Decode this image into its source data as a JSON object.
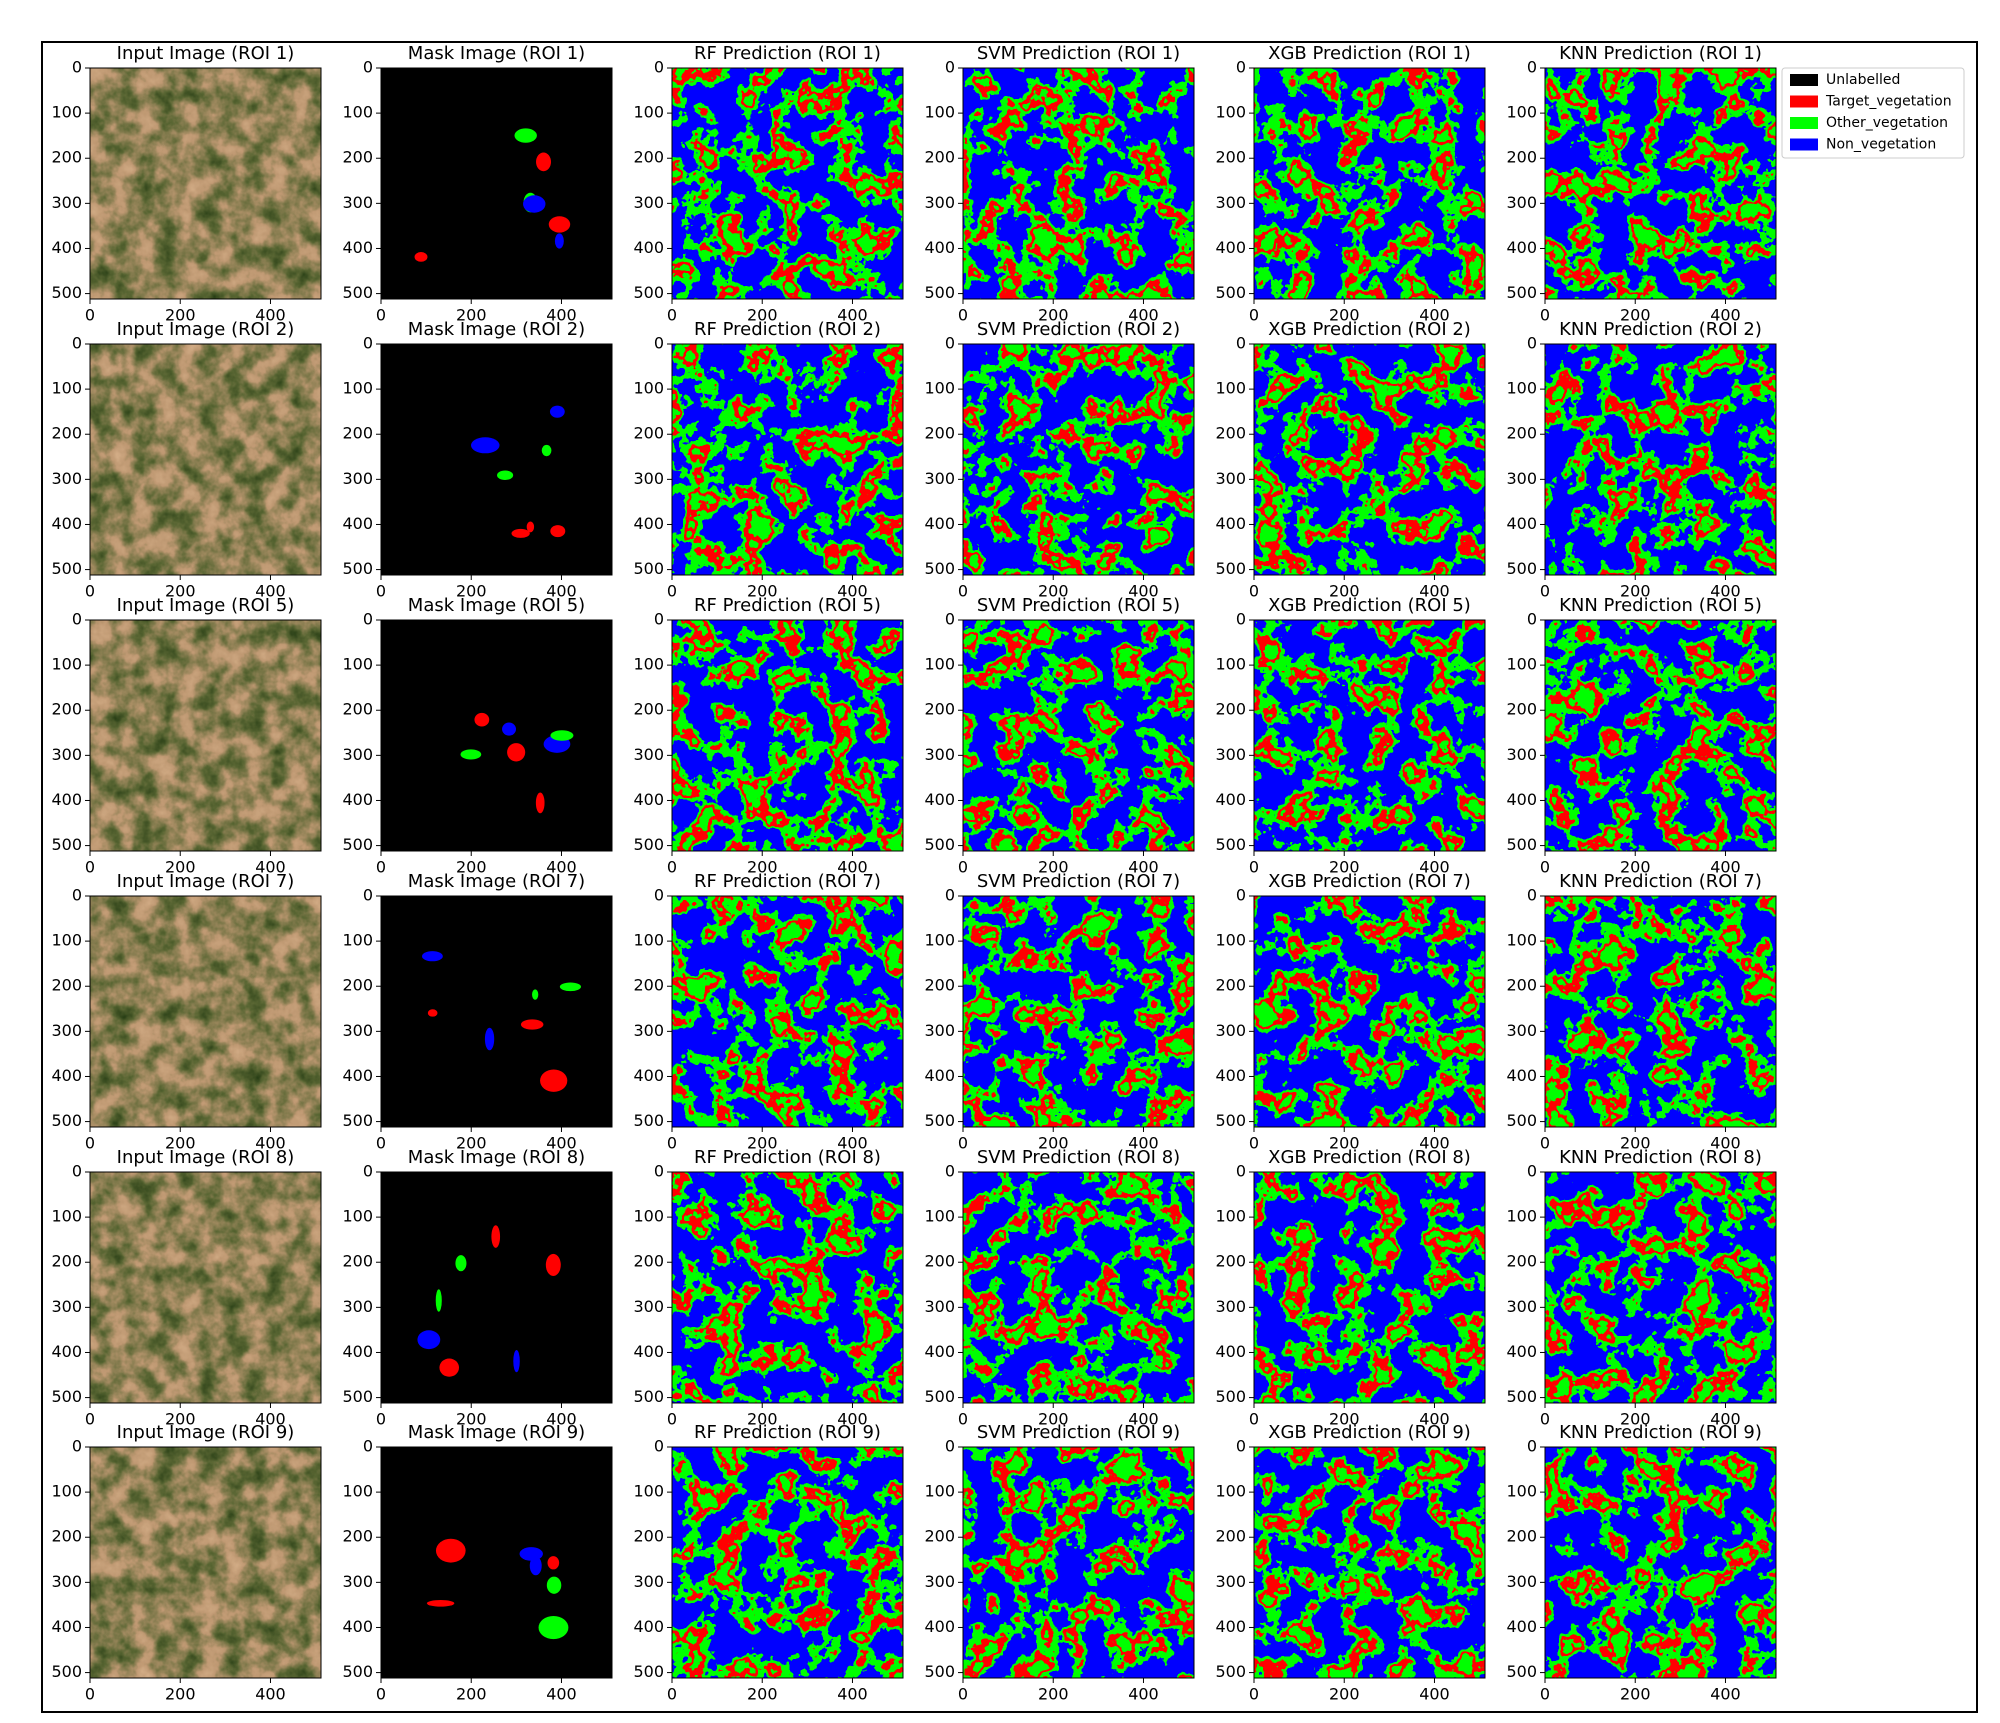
{
  "chart_data": {
    "type": "image_grid",
    "panels": [
      [
        "Input Image (ROI 1)",
        "Mask Image (ROI 1)",
        "RF Prediction (ROI 1)",
        "SVM Prediction (ROI 1)",
        "XGB Prediction (ROI 1)",
        "KNN Prediction (ROI 1)"
      ],
      [
        "Input Image (ROI 2)",
        "Mask Image (ROI 2)",
        "RF Prediction (ROI 2)",
        "SVM Prediction (ROI 2)",
        "XGB Prediction (ROI 2)",
        "KNN Prediction (ROI 2)"
      ],
      [
        "Input Image (ROI 5)",
        "Mask Image (ROI 5)",
        "RF Prediction (ROI 5)",
        "SVM Prediction (ROI 5)",
        "XGB Prediction (ROI 5)",
        "KNN Prediction (ROI 5)"
      ],
      [
        "Input Image (ROI 7)",
        "Mask Image (ROI 7)",
        "RF Prediction (ROI 7)",
        "SVM Prediction (ROI 7)",
        "XGB Prediction (ROI 7)",
        "KNN Prediction (ROI 7)"
      ],
      [
        "Input Image (ROI 8)",
        "Mask Image (ROI 8)",
        "RF Prediction (ROI 8)",
        "SVM Prediction (ROI 8)",
        "XGB Prediction (ROI 8)",
        "KNN Prediction (ROI 8)"
      ],
      [
        "Input Image (ROI 9)",
        "Mask Image (ROI 9)",
        "RF Prediction (ROI 9)",
        "SVM Prediction (ROI 9)",
        "XGB Prediction (ROI 9)",
        "KNN Prediction (ROI 9)"
      ]
    ],
    "xlim": [
      0,
      512
    ],
    "ylim": [
      512,
      0
    ],
    "xticks": [
      0,
      200,
      400
    ],
    "yticks": [
      0,
      100,
      200,
      300,
      400,
      500
    ],
    "legend": "upper right",
    "series": [
      {
        "name": "Unlabelled",
        "color": "#000000"
      },
      {
        "name": "Target_vegetation",
        "color": "#ff0000"
      },
      {
        "name": "Other_vegetation",
        "color": "#00ff00"
      },
      {
        "name": "Non_vegetation",
        "color": "#0000ff"
      }
    ]
  }
}
